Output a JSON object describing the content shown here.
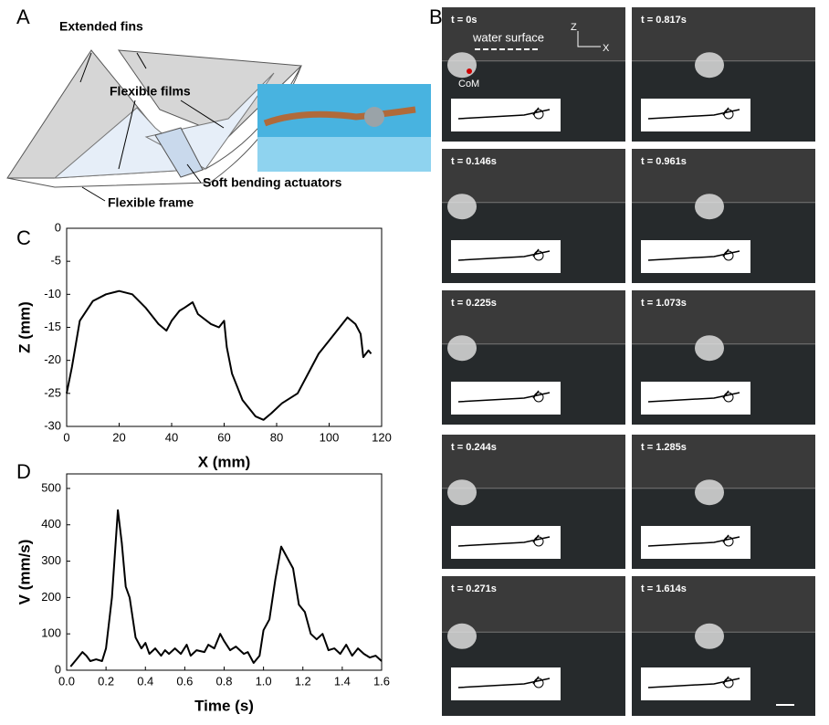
{
  "panel_labels": [
    "A",
    "B",
    "C",
    "D"
  ],
  "diagram": {
    "labels": [
      "Extended fins",
      "Flexible films",
      "Soft bending actuators",
      "Flexible frame"
    ]
  },
  "frames": {
    "overlay": {
      "water_surface": "water surface",
      "z_axis": "Z",
      "x_axis": "X",
      "com": "CoM"
    },
    "times": [
      "t = 0s",
      "t = 0.146s",
      "t = 0.225s",
      "t = 0.244s",
      "t = 0.271s",
      "t = 0.817s",
      "t = 0.961s",
      "t = 1.073s",
      "t = 1.285s",
      "t = 1.614s"
    ]
  },
  "chart_data": [
    {
      "type": "line",
      "xlabel": "X (mm)",
      "ylabel": "Z (mm)",
      "color": "#000000",
      "x": [
        0,
        2,
        5,
        10,
        15,
        20,
        25,
        30,
        35,
        38,
        40,
        43,
        45,
        48,
        50,
        55,
        58,
        60,
        60.5,
        61,
        63,
        67,
        72,
        75,
        78,
        82,
        88,
        92,
        96,
        100,
        104,
        107,
        110,
        112,
        113,
        115,
        116
      ],
      "values": [
        -25,
        -21,
        -14,
        -11,
        -10,
        -9.5,
        -10,
        -12,
        -14.5,
        -15.5,
        -14,
        -12.5,
        -12,
        -11.2,
        -13,
        -14.5,
        -15,
        -14,
        -16,
        -18,
        -22,
        -26,
        -28.5,
        -29,
        -28,
        -26.5,
        -25,
        -22,
        -19,
        -17,
        -15,
        -13.5,
        -14.5,
        -16,
        -19.5,
        -18.5,
        -19
      ],
      "xlim": [
        0,
        120
      ],
      "xticks": [
        0,
        20,
        40,
        60,
        80,
        100,
        120
      ],
      "ylim": [
        -30,
        0
      ],
      "yticks": [
        0,
        -5,
        -10,
        -15,
        -20,
        -25,
        -30
      ]
    },
    {
      "type": "line",
      "xlabel": "Time (s)",
      "ylabel": "V (mm/s)",
      "color": "#000000",
      "x": [
        0.02,
        0.05,
        0.08,
        0.1,
        0.12,
        0.15,
        0.18,
        0.2,
        0.23,
        0.26,
        0.28,
        0.3,
        0.32,
        0.35,
        0.38,
        0.4,
        0.42,
        0.45,
        0.48,
        0.5,
        0.52,
        0.55,
        0.58,
        0.61,
        0.63,
        0.66,
        0.7,
        0.72,
        0.75,
        0.78,
        0.8,
        0.83,
        0.86,
        0.9,
        0.92,
        0.95,
        0.98,
        1.0,
        1.03,
        1.06,
        1.09,
        1.12,
        1.15,
        1.18,
        1.21,
        1.24,
        1.27,
        1.3,
        1.33,
        1.36,
        1.39,
        1.42,
        1.45,
        1.48,
        1.51,
        1.54,
        1.57,
        1.6
      ],
      "values": [
        10,
        30,
        50,
        40,
        25,
        30,
        25,
        60,
        200,
        440,
        350,
        230,
        200,
        90,
        60,
        75,
        45,
        60,
        40,
        55,
        45,
        60,
        45,
        70,
        40,
        55,
        50,
        70,
        60,
        100,
        80,
        55,
        65,
        45,
        50,
        20,
        40,
        110,
        140,
        250,
        340,
        310,
        280,
        180,
        160,
        100,
        85,
        100,
        55,
        60,
        45,
        70,
        40,
        60,
        45,
        35,
        40,
        25
      ],
      "xlim": [
        0,
        1.6
      ],
      "xticks": [
        {
          "value": 0,
          "label": "0.0"
        },
        {
          "value": 0.2,
          "label": "0.2"
        },
        {
          "value": 0.4,
          "label": "0.4"
        },
        {
          "value": 0.6,
          "label": "0.6"
        },
        {
          "value": 0.8,
          "label": "0.8"
        },
        {
          "value": 1,
          "label": "1.0"
        },
        {
          "value": 1.2,
          "label": "1.2"
        },
        {
          "value": 1.4,
          "label": "1.4"
        },
        {
          "value": 1.6,
          "label": "1.6"
        }
      ],
      "ylim": [
        0,
        540
      ],
      "yticks": [
        0,
        100,
        200,
        300,
        400,
        500
      ]
    }
  ]
}
